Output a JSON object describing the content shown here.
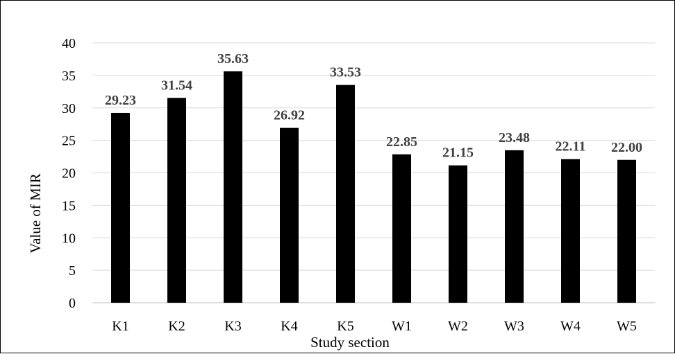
{
  "chart_data": {
    "type": "bar",
    "title": "",
    "xlabel": "Study section",
    "ylabel": "Value of MIR",
    "categories": [
      "K1",
      "K2",
      "K3",
      "K4",
      "K5",
      "W1",
      "W2",
      "W3",
      "W4",
      "W5"
    ],
    "values": [
      29.23,
      31.54,
      35.63,
      26.92,
      33.53,
      22.85,
      21.15,
      23.48,
      22.11,
      22.0
    ],
    "data_labels": [
      "29.23",
      "31.54",
      "35.63",
      "26.92",
      "33.53",
      "22.85",
      "21.15",
      "23.48",
      "22.11",
      "22.00"
    ],
    "ylim": [
      0,
      40
    ],
    "yticks": [
      0,
      5,
      10,
      15,
      20,
      25,
      30,
      35,
      40
    ],
    "grid": true,
    "legend": "none",
    "colors": {
      "bar": "#000000",
      "grid": "#d9d9d9",
      "axis": "#bfbfbf",
      "data_label": "#404040"
    }
  }
}
